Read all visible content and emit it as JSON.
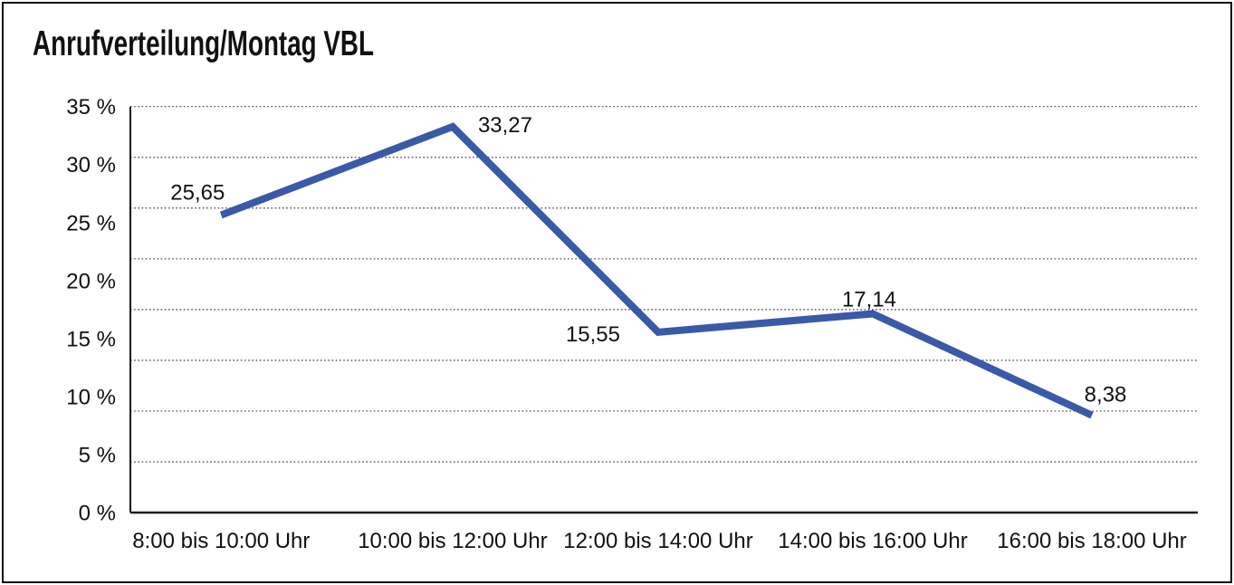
{
  "frame": {
    "background": "#ffffff",
    "border_color": "#0c0c0c"
  },
  "chart_data": {
    "type": "line",
    "title": "Anrufverteilung/Montag VBL",
    "categories": [
      "8:00 bis 10:00 Uhr",
      "10:00 bis 12:00 Uhr",
      "12:00 bis 14:00 Uhr",
      "14:00 bis 16:00 Uhr",
      "16:00 bis 18:00 Uhr"
    ],
    "values": [
      25.65,
      33.27,
      15.55,
      17.14,
      8.38
    ],
    "value_labels": [
      "25,65",
      "33,27",
      "15,55",
      "17,14",
      "8,38"
    ],
    "y_tick_labels": [
      "35 %",
      "30 %",
      "25 %",
      "20 %",
      "15 %",
      "10 %",
      "5 %",
      "0 %"
    ],
    "y_ticks": [
      35,
      30,
      25,
      20,
      15,
      10,
      5,
      0
    ],
    "ylim": [
      0,
      35
    ],
    "xlabel": "",
    "ylabel": "",
    "legend": "none",
    "grid": "horizontal-dotted",
    "series_color": "#3A59A6",
    "text_color": "#111111",
    "axis_color": "#1a1a1a",
    "gridline_color": "#3c3c3c"
  }
}
